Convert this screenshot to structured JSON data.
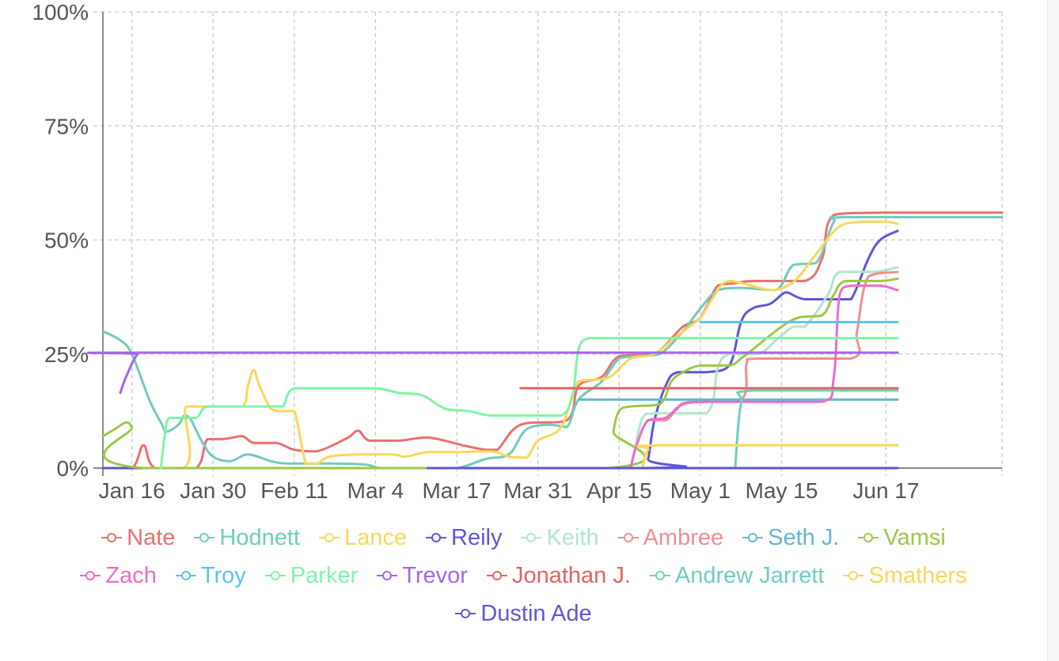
{
  "chart_data": {
    "type": "line",
    "title": "",
    "xlabel": "",
    "ylabel": "",
    "x_ticks": [
      "Jan 16",
      "Jan 30",
      "Feb 11",
      "Mar 4",
      "Mar 17",
      "Mar 31",
      "Apr 15",
      "May 1",
      "May 15",
      "Jun 17"
    ],
    "y_ticks": [
      "0%",
      "25%",
      "50%",
      "75%",
      "100%"
    ],
    "ylim": [
      0,
      100
    ],
    "x_range": [
      0,
      155
    ],
    "x_tick_positions": [
      5,
      19,
      33,
      47,
      61,
      75,
      89,
      103,
      117,
      135
    ],
    "grid": true,
    "legend_position": "bottom",
    "series": [
      {
        "name": "Nate",
        "color": "#e8716d",
        "points": [
          [
            0,
            0
          ],
          [
            5,
            0
          ],
          [
            7,
            5
          ],
          [
            9,
            0
          ],
          [
            16,
            0
          ],
          [
            18,
            6.3
          ],
          [
            21,
            6.4
          ],
          [
            24,
            7
          ],
          [
            26,
            5.5
          ],
          [
            30,
            5.5
          ],
          [
            33,
            4
          ],
          [
            37,
            3.7
          ],
          [
            42,
            6.5
          ],
          [
            44,
            8.2
          ],
          [
            46,
            6
          ],
          [
            51,
            6
          ],
          [
            56,
            6.7
          ],
          [
            62,
            5
          ],
          [
            66,
            4
          ],
          [
            68,
            4
          ],
          [
            72,
            9.5
          ],
          [
            80,
            10.5
          ],
          [
            82,
            18
          ],
          [
            86,
            20
          ],
          [
            89,
            24.5
          ],
          [
            95,
            25
          ],
          [
            100,
            31
          ],
          [
            103,
            33
          ],
          [
            106,
            40
          ],
          [
            109,
            40.5
          ],
          [
            112,
            41
          ],
          [
            121,
            41
          ],
          [
            124,
            46
          ],
          [
            126,
            55.5
          ],
          [
            135,
            56
          ],
          [
            155,
            56
          ]
        ]
      },
      {
        "name": "Hodnett",
        "color": "#6fccbf",
        "points": [
          [
            0,
            30
          ],
          [
            3,
            28
          ],
          [
            5,
            25
          ],
          [
            8,
            15
          ],
          [
            10,
            10
          ],
          [
            11,
            8
          ],
          [
            13,
            9.5
          ],
          [
            14,
            11.5
          ],
          [
            15,
            11
          ],
          [
            17,
            6
          ],
          [
            19,
            2.5
          ],
          [
            22,
            1.5
          ],
          [
            25,
            3
          ],
          [
            29,
            1.5
          ],
          [
            32,
            1
          ],
          [
            38,
            1
          ],
          [
            45,
            0.8
          ],
          [
            48,
            0
          ],
          [
            55,
            0
          ],
          [
            61,
            0
          ],
          [
            66,
            2
          ],
          [
            70,
            3
          ],
          [
            73,
            8.5
          ],
          [
            77,
            9.5
          ],
          [
            80,
            9
          ],
          [
            82,
            15
          ],
          [
            86,
            19
          ],
          [
            89,
            24
          ],
          [
            92,
            24.5
          ],
          [
            96,
            25
          ],
          [
            100,
            30
          ],
          [
            103,
            35
          ],
          [
            106,
            39
          ],
          [
            110,
            39.5
          ],
          [
            116,
            39
          ],
          [
            119,
            44.5
          ],
          [
            123,
            45
          ],
          [
            126,
            54
          ],
          [
            128,
            55
          ],
          [
            155,
            55
          ]
        ]
      },
      {
        "name": "Lance",
        "color": "#fad75a",
        "points": [
          [
            0,
            0
          ],
          [
            14,
            0
          ],
          [
            14.3,
            13.5
          ],
          [
            19,
            13.5
          ],
          [
            24,
            13.5
          ],
          [
            25,
            18
          ],
          [
            26,
            21.5
          ],
          [
            27,
            18
          ],
          [
            29,
            13
          ],
          [
            31,
            12.5
          ],
          [
            33,
            12.5
          ],
          [
            35,
            1
          ],
          [
            37,
            1
          ],
          [
            39,
            2.5
          ],
          [
            44,
            3
          ],
          [
            50,
            3
          ],
          [
            52,
            2.5
          ],
          [
            56,
            3.5
          ],
          [
            61,
            3.5
          ],
          [
            67,
            3.7
          ],
          [
            70,
            2.5
          ],
          [
            73,
            2.3
          ],
          [
            75,
            6
          ],
          [
            79,
            9
          ],
          [
            82,
            19
          ],
          [
            86,
            19.5
          ],
          [
            88,
            20.5
          ],
          [
            91,
            24
          ],
          [
            95,
            25
          ],
          [
            99,
            29
          ],
          [
            103,
            33
          ],
          [
            105,
            37
          ],
          [
            108,
            41
          ],
          [
            115,
            39
          ],
          [
            118,
            40
          ],
          [
            120,
            42
          ],
          [
            123,
            47
          ],
          [
            127,
            53
          ],
          [
            131,
            54
          ],
          [
            135,
            54
          ],
          [
            137,
            53.5
          ]
        ]
      },
      {
        "name": "Reily",
        "color": "#5e56d6",
        "points": [
          [
            0,
            0
          ],
          [
            93,
            0
          ],
          [
            94,
            2
          ],
          [
            95,
            10
          ],
          [
            97,
            18
          ],
          [
            99,
            21
          ],
          [
            104,
            21
          ],
          [
            108,
            22.5
          ],
          [
            110,
            32
          ],
          [
            112,
            35
          ],
          [
            115,
            36
          ],
          [
            117,
            38
          ],
          [
            118,
            38.5
          ],
          [
            121,
            37
          ],
          [
            127,
            37
          ],
          [
            129,
            37
          ],
          [
            132,
            46
          ],
          [
            134,
            50
          ],
          [
            137,
            52
          ]
        ]
      },
      {
        "name": "Keith",
        "color": "#b0e6cb",
        "points": [
          [
            91,
            0
          ],
          [
            93,
            11
          ],
          [
            95,
            12
          ],
          [
            104,
            12
          ],
          [
            106,
            22
          ],
          [
            108,
            25
          ],
          [
            113,
            25
          ],
          [
            116,
            28
          ],
          [
            119,
            31
          ],
          [
            121,
            31
          ],
          [
            125,
            38
          ],
          [
            127,
            43
          ],
          [
            133,
            43
          ],
          [
            137,
            44
          ]
        ]
      },
      {
        "name": "Ambree",
        "color": "#ee8f92",
        "points": [
          [
            91,
            0
          ],
          [
            92,
            5
          ],
          [
            94,
            10.5
          ],
          [
            97,
            10.5
          ],
          [
            99,
            13
          ],
          [
            101,
            14.5
          ],
          [
            110,
            15
          ],
          [
            111,
            23
          ],
          [
            113,
            24
          ],
          [
            129,
            24
          ],
          [
            130,
            30
          ],
          [
            132,
            42
          ],
          [
            137,
            43
          ]
        ]
      },
      {
        "name": "Seth J.",
        "color": "#64b7d1",
        "points": [
          [
            82,
            15
          ],
          [
            137,
            15
          ]
        ]
      },
      {
        "name": "Vamsi",
        "color": "#9cc845",
        "points": [
          [
            0,
            7
          ],
          [
            2,
            8.5
          ],
          [
            4,
            10
          ],
          [
            5,
            9
          ],
          [
            7,
            0
          ],
          [
            87,
            0
          ],
          [
            88,
            8
          ],
          [
            89,
            12.5
          ],
          [
            91,
            13.5
          ],
          [
            96,
            14
          ],
          [
            98,
            19
          ],
          [
            100,
            21
          ],
          [
            103,
            22.5
          ],
          [
            108,
            22.5
          ],
          [
            110,
            24
          ],
          [
            113,
            27
          ],
          [
            117,
            31
          ],
          [
            120,
            33
          ],
          [
            124,
            33.5
          ],
          [
            126,
            38
          ],
          [
            128,
            41
          ],
          [
            134,
            41
          ],
          [
            137,
            41.5
          ]
        ]
      },
      {
        "name": "Zach",
        "color": "#ec6dc9",
        "points": [
          [
            91,
            0
          ],
          [
            92,
            5
          ],
          [
            94,
            10.5
          ],
          [
            97,
            11
          ],
          [
            100,
            14
          ],
          [
            104,
            14.5
          ],
          [
            112,
            14.5
          ],
          [
            124,
            14.5
          ],
          [
            126,
            20
          ],
          [
            127,
            38
          ],
          [
            129,
            40
          ],
          [
            134,
            40
          ],
          [
            137,
            39
          ]
        ]
      },
      {
        "name": "Troy",
        "color": "#5cc2ec",
        "points": [
          [
            103,
            32
          ],
          [
            137,
            32
          ]
        ]
      },
      {
        "name": "Parker",
        "color": "#7ef5a6",
        "points": [
          [
            10,
            0
          ],
          [
            11,
            10
          ],
          [
            12,
            11
          ],
          [
            16,
            11
          ],
          [
            18,
            13.5
          ],
          [
            24,
            13.5
          ],
          [
            29,
            13.5
          ],
          [
            31,
            13.5
          ],
          [
            33,
            17.5
          ],
          [
            40,
            17.5
          ],
          [
            47,
            17.5
          ],
          [
            51,
            16.5
          ],
          [
            55,
            16
          ],
          [
            59,
            13
          ],
          [
            63,
            12.5
          ],
          [
            67,
            11.5
          ],
          [
            74,
            11.5
          ],
          [
            79,
            11.5
          ],
          [
            81,
            16
          ],
          [
            82,
            26
          ],
          [
            84,
            28.5
          ],
          [
            90,
            28.5
          ],
          [
            137,
            28.5
          ]
        ]
      },
      {
        "name": "Trevor",
        "color": "#a565eb",
        "points": [
          [
            3,
            16.5
          ],
          [
            4,
            20
          ],
          [
            6,
            25
          ],
          [
            8,
            25.3
          ],
          [
            137,
            25.3
          ]
        ]
      },
      {
        "name": "Jonathan J.",
        "color": "#e2635f",
        "points": [
          [
            72,
            17.5
          ],
          [
            137,
            17.5
          ]
        ]
      },
      {
        "name": "Andrew Jarrett",
        "color": "#70cdbf",
        "points": [
          [
            109,
            0
          ],
          [
            110,
            14
          ],
          [
            112,
            17
          ],
          [
            137,
            17
          ]
        ]
      },
      {
        "name": "Smathers",
        "color": "#fad75a",
        "points": [
          [
            93,
            0
          ],
          [
            94,
            4
          ],
          [
            96,
            5
          ],
          [
            137,
            5
          ]
        ]
      },
      {
        "name": "Dustin Ade",
        "color": "#5e56d6",
        "points": [
          [
            56,
            0
          ],
          [
            137,
            0
          ]
        ]
      }
    ]
  },
  "legend": {
    "rows": [
      [
        {
          "name": "Nate",
          "color": "#e8716d"
        },
        {
          "name": "Hodnett",
          "color": "#6fccbf"
        },
        {
          "name": "Lance",
          "color": "#fad75a"
        },
        {
          "name": "Reily",
          "color": "#5e56d6"
        },
        {
          "name": "Keith",
          "color": "#b0e6cb"
        },
        {
          "name": "Ambree",
          "color": "#ee8f92"
        },
        {
          "name": "Seth J.",
          "color": "#64b7d1"
        },
        {
          "name": "Vamsi",
          "color": "#9cc845"
        }
      ],
      [
        {
          "name": "Zach",
          "color": "#ec6dc9"
        },
        {
          "name": "Troy",
          "color": "#5cc2ec"
        },
        {
          "name": "Parker",
          "color": "#7ef5a6"
        },
        {
          "name": "Trevor",
          "color": "#a565eb"
        },
        {
          "name": "Jonathan J.",
          "color": "#e2635f"
        },
        {
          "name": "Andrew Jarrett",
          "color": "#70cdbf"
        },
        {
          "name": "Smathers",
          "color": "#fad75a"
        }
      ],
      [
        {
          "name": "Dustin Ade",
          "color": "#5e56d6"
        }
      ]
    ]
  }
}
